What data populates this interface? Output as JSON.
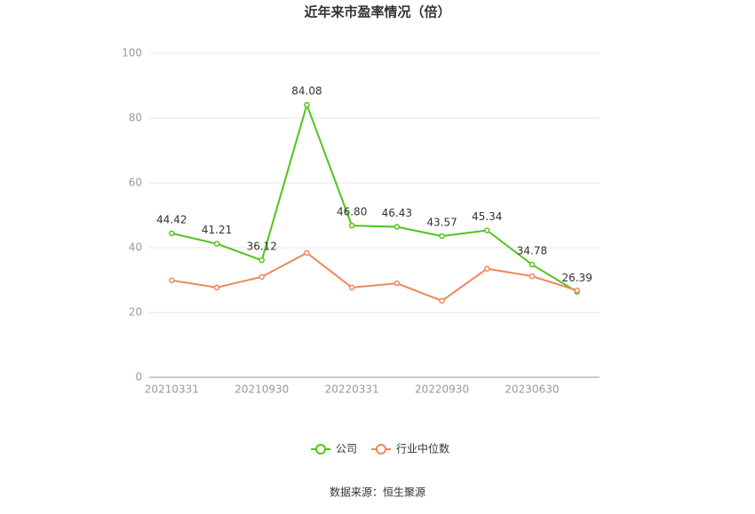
{
  "chart_data": {
    "type": "line",
    "title": "近年来市盈率情况（倍）",
    "categories": [
      "20210331",
      null,
      "20210930",
      null,
      "20220331",
      null,
      "20220930",
      null,
      "20230630",
      null
    ],
    "series": [
      {
        "name": "公司",
        "color": "#52c41a",
        "values": [
          44.42,
          41.21,
          36.12,
          84.08,
          46.8,
          46.43,
          43.57,
          45.34,
          34.78,
          26.39
        ],
        "value_labels": [
          "44.42",
          "41.21",
          "36.12",
          "84.08",
          "46.80",
          "46.43",
          "43.57",
          "45.34",
          "34.78",
          "26.39"
        ]
      },
      {
        "name": "行业中位数",
        "color": "#f0875a",
        "values": [
          29.9,
          27.7,
          31.0,
          38.4,
          27.7,
          29.0,
          23.6,
          33.5,
          31.2,
          26.8
        ]
      }
    ],
    "ylim": [
      0,
      100
    ],
    "yticks": [
      0,
      20,
      40,
      60,
      80,
      100
    ],
    "grid": true,
    "legend": "bottom",
    "source": "数据来源：恒生聚源"
  }
}
